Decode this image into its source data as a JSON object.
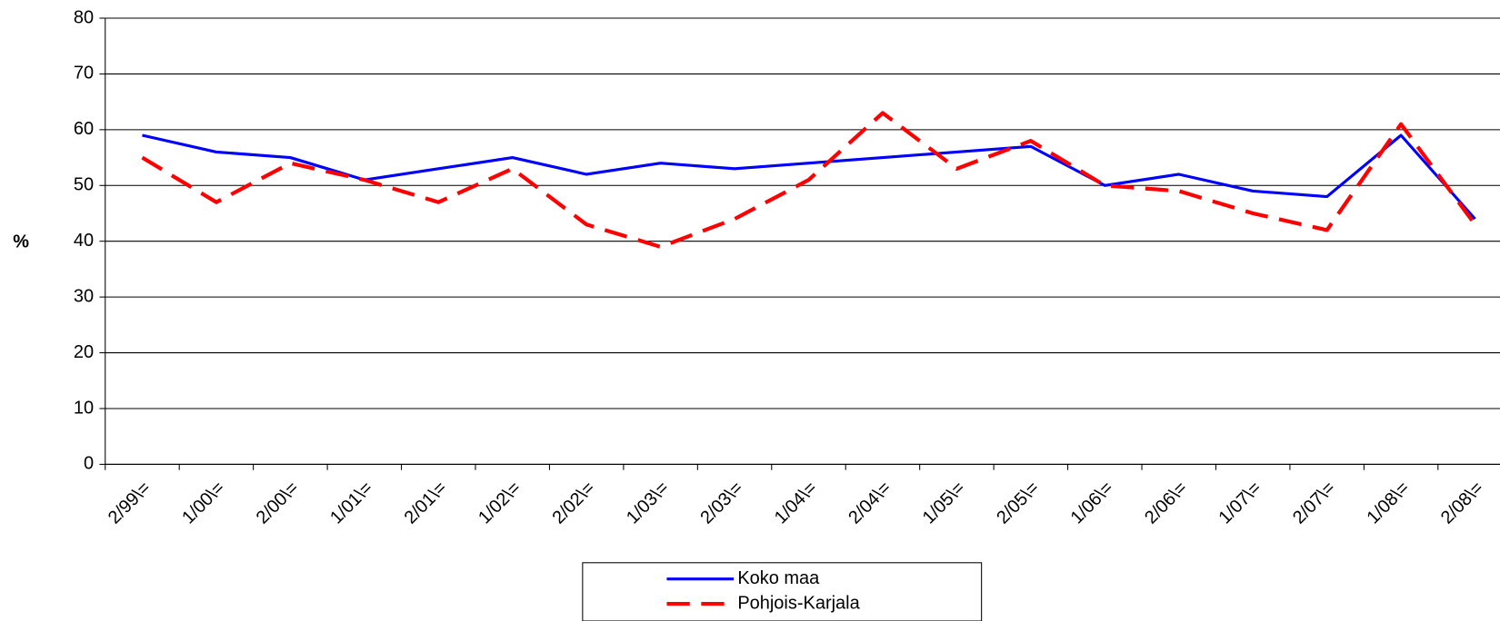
{
  "chart_data": {
    "type": "line",
    "y_label": "%",
    "categories": [
      "2/99\\=",
      "1/00\\=",
      "2/00\\=",
      "1/01\\=",
      "2/01\\=",
      "1/02\\=",
      "2/02\\=",
      "1/03\\=",
      "2/03\\=",
      "1/04\\=",
      "2/04\\=",
      "1/05\\=",
      "2/05\\=",
      "1/06\\=",
      "2/06\\=",
      "1/07\\=",
      "2/07\\=",
      "1/08\\=",
      "2/08\\="
    ],
    "series": [
      {
        "name": "Koko maa",
        "color": "#0000ff",
        "dash": "solid",
        "values": [
          59,
          56,
          55,
          51,
          53,
          55,
          52,
          54,
          53,
          54,
          55,
          56,
          57,
          50,
          52,
          49,
          48,
          59,
          44
        ]
      },
      {
        "name": "Pohjois-Karjala",
        "color": "#ff0000",
        "dash": "dashed",
        "values": [
          55,
          47,
          54,
          51,
          47,
          53,
          43,
          39,
          44,
          51,
          63,
          53,
          58,
          50,
          49,
          45,
          42,
          61,
          43
        ]
      }
    ],
    "ylim": [
      0,
      80
    ],
    "yticks": [
      0,
      10,
      20,
      30,
      40,
      50,
      60,
      70,
      80
    ],
    "grid": true,
    "legend": "bottom"
  }
}
